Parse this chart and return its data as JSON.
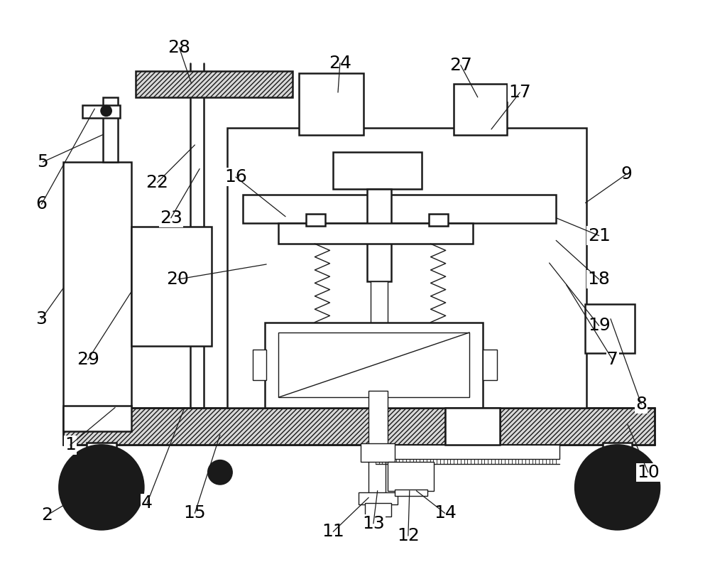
{
  "bg_color": "#ffffff",
  "line_color": "#1a1a1a",
  "label_color": "#000000",
  "lw": 1.8,
  "tlw": 1.0,
  "fig_width": 10.0,
  "fig_height": 7.91
}
